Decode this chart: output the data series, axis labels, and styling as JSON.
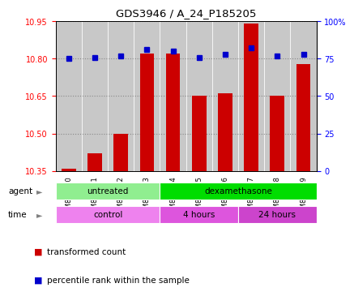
{
  "title": "GDS3946 / A_24_P185205",
  "samples": [
    "GSM847200",
    "GSM847201",
    "GSM847202",
    "GSM847203",
    "GSM847204",
    "GSM847205",
    "GSM847206",
    "GSM847207",
    "GSM847208",
    "GSM847209"
  ],
  "red_values": [
    10.36,
    10.42,
    10.5,
    10.82,
    10.82,
    10.65,
    10.66,
    10.94,
    10.65,
    10.78
  ],
  "blue_values": [
    75,
    76,
    77,
    81,
    80,
    76,
    78,
    82,
    77,
    78
  ],
  "ylim_left": [
    10.35,
    10.95
  ],
  "ylim_right": [
    0,
    100
  ],
  "yticks_left": [
    10.35,
    10.5,
    10.65,
    10.8,
    10.95
  ],
  "yticks_right": [
    0,
    25,
    50,
    75,
    100
  ],
  "ytick_labels_right": [
    "0",
    "25",
    "50",
    "75",
    "100%"
  ],
  "agent_groups": [
    {
      "label": "untreated",
      "start": 0,
      "end": 4,
      "color": "#90EE90"
    },
    {
      "label": "dexamethasone",
      "start": 4,
      "end": 10,
      "color": "#00DD00"
    }
  ],
  "time_groups": [
    {
      "label": "control",
      "start": 0,
      "end": 4,
      "color": "#EE82EE"
    },
    {
      "label": "4 hours",
      "start": 4,
      "end": 7,
      "color": "#DD55DD"
    },
    {
      "label": "24 hours",
      "start": 7,
      "end": 10,
      "color": "#CC44CC"
    }
  ],
  "bar_color": "#CC0000",
  "dot_color": "#0000CC",
  "baseline": 10.35,
  "grid_color": "#888888",
  "legend_red_label": "transformed count",
  "legend_blue_label": "percentile rank within the sample",
  "tick_bg_color": "#C8C8C8",
  "plot_bg_color": "#FFFFFF"
}
